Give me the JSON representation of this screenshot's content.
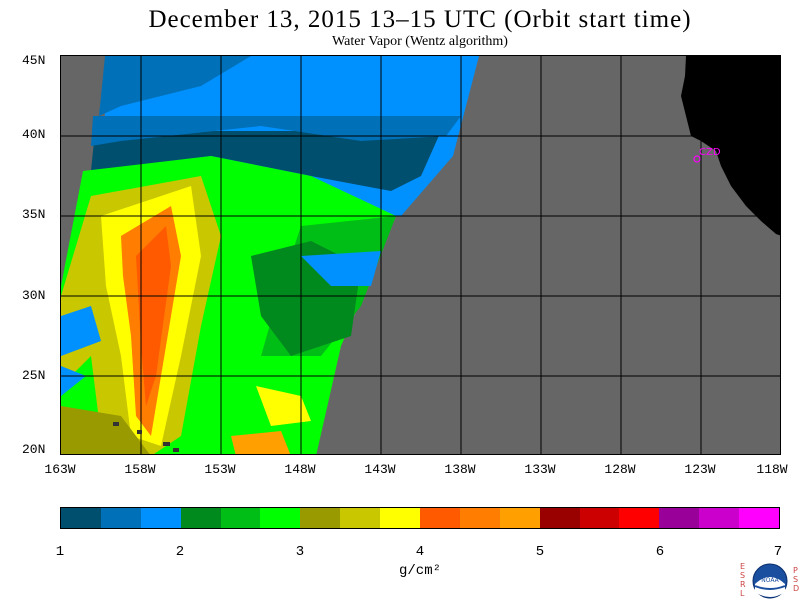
{
  "title": "December 13, 2015  13–15 UTC  (Orbit start time)",
  "subtitle": "Water Vapor (Wentz algorithm)",
  "map": {
    "lat_labels": [
      "45N",
      "40N",
      "35N",
      "30N",
      "25N",
      "20N"
    ],
    "lon_labels": [
      "163W",
      "158W",
      "153W",
      "148W",
      "143W",
      "138W",
      "133W",
      "128W",
      "123W",
      "118W"
    ],
    "station_label": "CZD",
    "colors": {
      "no_data": "#666666",
      "land": "#000000",
      "grid": "#000000",
      "station": "#ff00ff"
    }
  },
  "colorbar": {
    "colors": [
      "#004f6e",
      "#0070b8",
      "#0091ff",
      "#00891d",
      "#00be16",
      "#00ff00",
      "#999900",
      "#c9c800",
      "#ffff00",
      "#ff5a00",
      "#ff7d00",
      "#ffa000",
      "#990000",
      "#cc0000",
      "#ff0000",
      "#990099",
      "#cc00cc",
      "#ff00ff"
    ],
    "tick_labels": [
      "1",
      "2",
      "3",
      "4",
      "5",
      "6",
      "7"
    ],
    "units": "g/cm²"
  },
  "logo": {
    "text": "NOAA",
    "left_letters": [
      "E",
      "S",
      "R",
      "L"
    ],
    "right_letters": [
      "P",
      "S",
      "D"
    ]
  }
}
